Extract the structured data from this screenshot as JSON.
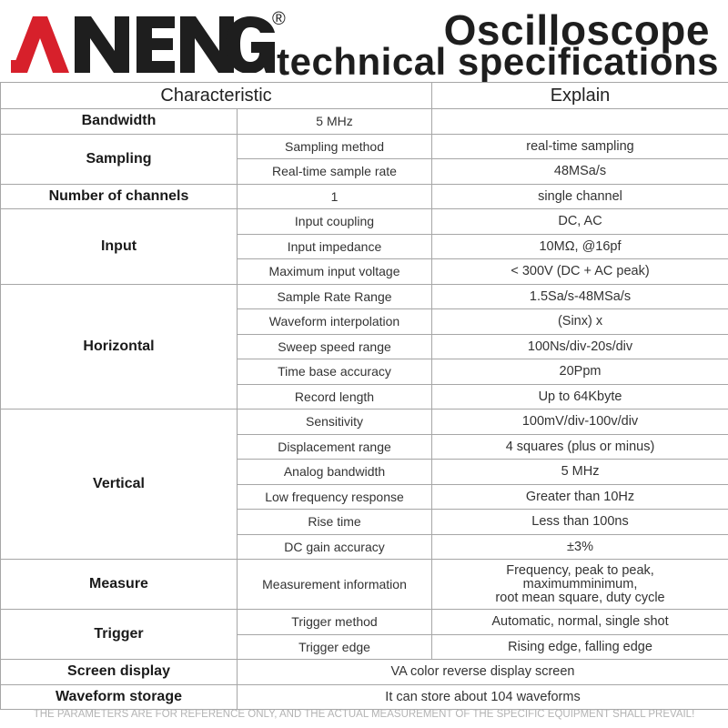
{
  "brand": {
    "logo_text": "ANENG",
    "registered": "®"
  },
  "title": {
    "line1": "Oscilloscope",
    "line2": "technical specifications"
  },
  "table": {
    "headers": {
      "characteristic": "Characteristic",
      "explain": "Explain"
    },
    "bandwidth": {
      "label": "Bandwidth",
      "value": "5 MHz"
    },
    "sampling": {
      "label": "Sampling",
      "rows": [
        {
          "sub": "Sampling method",
          "value": "real-time sampling"
        },
        {
          "sub": "Real-time sample rate",
          "value": "48MSa/s"
        }
      ]
    },
    "channels": {
      "label": "Number of channels",
      "sub": "1",
      "value": "single channel"
    },
    "input": {
      "label": "Input",
      "rows": [
        {
          "sub": "Input coupling",
          "value": "DC, AC"
        },
        {
          "sub": "Input impedance",
          "value": "10MΩ, @16pf"
        },
        {
          "sub": "Maximum input voltage",
          "value": "< 300V (DC + AC peak)"
        }
      ]
    },
    "horizontal": {
      "label": "Horizontal",
      "rows": [
        {
          "sub": "Sample Rate Range",
          "value": "1.5Sa/s-48MSa/s"
        },
        {
          "sub": "Waveform interpolation",
          "value": "(Sinx) x"
        },
        {
          "sub": "Sweep speed range",
          "value": "100Ns/div-20s/div"
        },
        {
          "sub": "Time base accuracy",
          "value": "20Ppm"
        },
        {
          "sub": "Record length",
          "value": "Up to 64Kbyte"
        }
      ]
    },
    "vertical": {
      "label": "Vertical",
      "rows": [
        {
          "sub": "Sensitivity",
          "value": "100mV/div-100v/div"
        },
        {
          "sub": "Displacement range",
          "value": "4 squares (plus or minus)"
        },
        {
          "sub": "Analog bandwidth",
          "value": "5 MHz"
        },
        {
          "sub": "Low frequency response",
          "value": "Greater than 10Hz"
        },
        {
          "sub": "Rise time",
          "value": "Less than 100ns"
        },
        {
          "sub": "DC gain accuracy",
          "value": "±3%"
        }
      ]
    },
    "measure": {
      "label": "Measure",
      "sub": "Measurement information",
      "value_lines": [
        "Frequency, peak to peak,",
        "maximumminimum,",
        "root mean square, duty cycle"
      ]
    },
    "trigger": {
      "label": "Trigger",
      "rows": [
        {
          "sub": "Trigger method",
          "value": "Automatic, normal, single shot"
        },
        {
          "sub": "Trigger edge",
          "value": "Rising edge, falling edge"
        }
      ]
    },
    "screen": {
      "label": "Screen display",
      "value": "VA color reverse display screen"
    },
    "storage": {
      "label": "Waveform storage",
      "value": "It can store about 104 waveforms"
    }
  },
  "footer": "THE PARAMETERS ARE FOR REFERENCE ONLY, AND THE ACTUAL MEASUREMENT OF THE SPECIFIC EQUIPMENT SHALL PREVAIL!",
  "colors": {
    "logo_red": "#d7202b",
    "text_dark": "#1e1e1e",
    "border": "#a6a6a6",
    "footer_gray": "#b3b3b3"
  }
}
